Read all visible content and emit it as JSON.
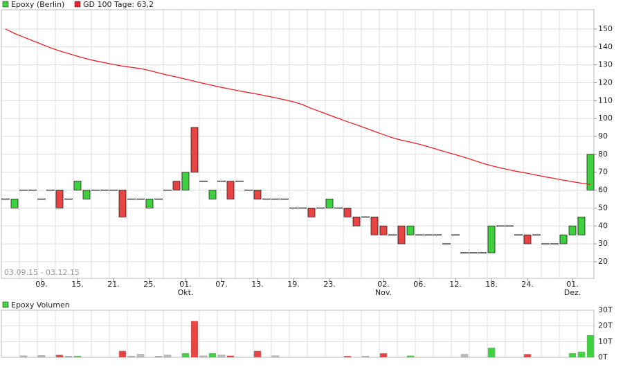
{
  "chart_data": [
    {
      "type": "candlestick",
      "name": "Epoxy (Berlin)",
      "date_range": "03.09.15 - 03.12.15",
      "up_color": "#3fd13f",
      "down_color": "#e84444",
      "categories": [
        null,
        null,
        null,
        null,
        "09.",
        null,
        null,
        null,
        "15.",
        null,
        null,
        null,
        "21.",
        null,
        null,
        null,
        "25.",
        null,
        null,
        null,
        "01.",
        null,
        null,
        null,
        "07.",
        null,
        null,
        null,
        "13.",
        null,
        null,
        null,
        "19.",
        null,
        null,
        null,
        "23.",
        null,
        null,
        null,
        null,
        null,
        "02.",
        null,
        null,
        null,
        "06.",
        null,
        null,
        null,
        "12.",
        null,
        null,
        null,
        "18.",
        null,
        null,
        null,
        "24.",
        null,
        null,
        null,
        null,
        "01.",
        null,
        null
      ],
      "months": [
        null,
        null,
        null,
        null,
        null,
        null,
        null,
        null,
        null,
        null,
        null,
        null,
        null,
        null,
        null,
        null,
        null,
        null,
        null,
        null,
        "Okt.",
        null,
        null,
        null,
        null,
        null,
        null,
        null,
        null,
        null,
        null,
        null,
        null,
        null,
        null,
        null,
        null,
        null,
        null,
        null,
        null,
        null,
        "Nov.",
        null,
        null,
        null,
        null,
        null,
        null,
        null,
        null,
        null,
        null,
        null,
        null,
        null,
        null,
        null,
        null,
        null,
        null,
        null,
        null,
        "Dez.",
        null,
        null
      ],
      "open": [
        55,
        50,
        60,
        60,
        55,
        60,
        60,
        55,
        60,
        55,
        60,
        60,
        60,
        60,
        55,
        55,
        50,
        55,
        60,
        65,
        60,
        95,
        65,
        55,
        65,
        65,
        65,
        60,
        60,
        55,
        55,
        55,
        50,
        50,
        50,
        50,
        50,
        50,
        50,
        45,
        45,
        45,
        40,
        35,
        40,
        35,
        35,
        35,
        35,
        30,
        35,
        25,
        25,
        25,
        25,
        40,
        40,
        35,
        35,
        35,
        30,
        30,
        30,
        35,
        35,
        60
      ],
      "close": [
        55,
        55,
        60,
        60,
        55,
        60,
        50,
        55,
        65,
        60,
        60,
        60,
        60,
        45,
        55,
        55,
        55,
        55,
        60,
        60,
        70,
        70,
        65,
        60,
        65,
        55,
        65,
        60,
        55,
        55,
        55,
        55,
        50,
        50,
        45,
        50,
        55,
        50,
        45,
        40,
        45,
        35,
        35,
        35,
        30,
        40,
        35,
        35,
        35,
        30,
        35,
        25,
        25,
        25,
        40,
        40,
        40,
        35,
        30,
        35,
        30,
        30,
        35,
        40,
        45,
        80
      ],
      "ma": {
        "name": "GD 100 Tage: 63,2",
        "color": "#e8202a",
        "values": [
          150,
          147.5,
          145.5,
          143.5,
          141.5,
          139.5,
          137.8,
          136.3,
          134.8,
          133.4,
          132.2,
          131.2,
          130.2,
          129.3,
          128.6,
          127.9,
          126.8,
          125.5,
          124.3,
          123.2,
          122,
          120.8,
          119.6,
          118.5,
          117.4,
          116.4,
          115.4,
          114.5,
          113.6,
          112.6,
          111.6,
          110.5,
          109.3,
          107.8,
          105.6,
          103.8,
          101.9,
          100,
          98.2,
          96.5,
          94.7,
          92.8,
          91,
          89.3,
          87.9,
          86.8,
          85.6,
          84.2,
          82.7,
          81.2,
          79.8,
          78.3,
          76.7,
          75,
          73.6,
          72.4,
          71.3,
          70.3,
          69.4,
          68.4,
          67.4,
          66.5,
          65.6,
          64.7,
          63.9,
          63.2
        ]
      },
      "ylim": [
        10.7,
        160.8
      ],
      "yticks": [
        20,
        30,
        40,
        50,
        60,
        70,
        80,
        90,
        100,
        110,
        120,
        130,
        140,
        150
      ],
      "grid": true
    },
    {
      "type": "bar",
      "name": "Epoxy Volumen",
      "values": [
        0,
        0,
        1,
        0,
        1.2,
        0,
        1.5,
        0.8,
        0.8,
        0,
        0,
        0,
        0,
        4,
        0.8,
        2,
        0,
        0.8,
        1.5,
        0,
        2.5,
        23,
        1,
        2.5,
        1.5,
        1,
        0,
        0,
        4,
        0,
        1,
        0,
        0,
        0,
        0,
        0,
        0,
        0,
        0.8,
        0,
        0.8,
        0,
        2.5,
        0,
        0,
        1,
        0,
        0,
        0,
        0,
        0,
        2,
        0,
        0,
        6,
        0,
        0,
        0,
        2,
        0,
        0,
        0,
        0,
        2.5,
        3.5,
        14
      ],
      "ylim": [
        0,
        30
      ],
      "yticks": [
        {
          "value": 0,
          "label": "0T"
        },
        {
          "value": 10,
          "label": "10T"
        },
        {
          "value": 20,
          "label": "20T"
        },
        {
          "value": 30,
          "label": "30T"
        }
      ],
      "grid": true
    }
  ]
}
